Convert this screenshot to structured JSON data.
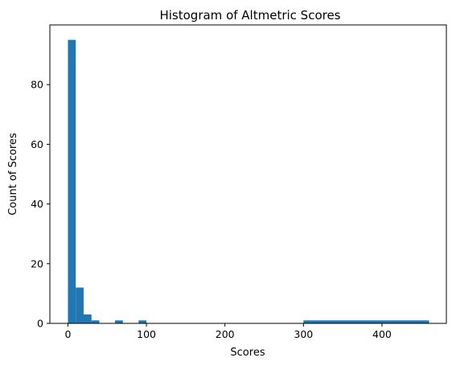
{
  "chart_data": {
    "type": "bar",
    "title": "Histogram of Altmetric Scores",
    "xlabel": "Scores",
    "ylabel": "Count of Scores",
    "xlim": [
      -23,
      482
    ],
    "ylim": [
      0,
      100
    ],
    "xticks": [
      0,
      100,
      200,
      300,
      400
    ],
    "xtick_labels": [
      "0",
      "100",
      "200",
      "300",
      "400"
    ],
    "yticks": [
      0,
      20,
      40,
      60,
      80
    ],
    "ytick_labels": [
      "0",
      "20",
      "40",
      "60",
      "80"
    ],
    "bar_color": "#1f77b4",
    "grid": false,
    "bins": [
      {
        "x0": 0,
        "x1": 10,
        "count": 95
      },
      {
        "x0": 10,
        "x1": 20,
        "count": 12
      },
      {
        "x0": 20,
        "x1": 30,
        "count": 3
      },
      {
        "x0": 30,
        "x1": 40,
        "count": 1
      },
      {
        "x0": 60,
        "x1": 70,
        "count": 1
      },
      {
        "x0": 90,
        "x1": 100,
        "count": 1
      },
      {
        "x0": 300,
        "x1": 460,
        "count": 1
      }
    ]
  }
}
